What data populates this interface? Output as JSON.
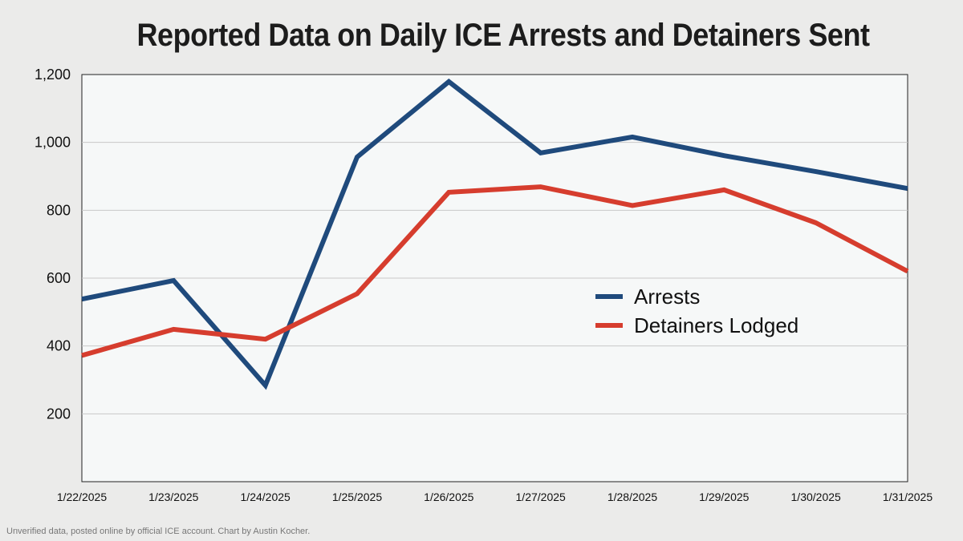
{
  "chart_data": {
    "type": "line",
    "title": "Reported Data on Daily ICE Arrests and Detainers Sent",
    "x": [
      "1/22/2025",
      "1/23/2025",
      "1/24/2025",
      "1/25/2025",
      "1/26/2025",
      "1/27/2025",
      "1/28/2025",
      "1/29/2025",
      "1/30/2025",
      "1/31/2025"
    ],
    "series": [
      {
        "name": "Arrests",
        "color": "#1f4a7c",
        "values": [
          538,
          593,
          284,
          957,
          1179,
          969,
          1016,
          961,
          914,
          864
        ]
      },
      {
        "name": "Detainers Lodged",
        "color": "#d63d2e",
        "values": [
          372,
          449,
          420,
          554,
          853,
          869,
          814,
          860,
          763,
          620
        ]
      }
    ],
    "yticks": [
      "200",
      "400",
      "600",
      "800",
      "1,000",
      "1,200"
    ],
    "ytick_values": [
      200,
      400,
      600,
      800,
      1000,
      1200
    ],
    "ylim": [
      0,
      1200
    ],
    "grid": true,
    "legend_position": "center-right",
    "xlabel": "",
    "ylabel": ""
  },
  "footnote": "Unverified data, posted online by official ICE account. Chart by Austin Kocher."
}
